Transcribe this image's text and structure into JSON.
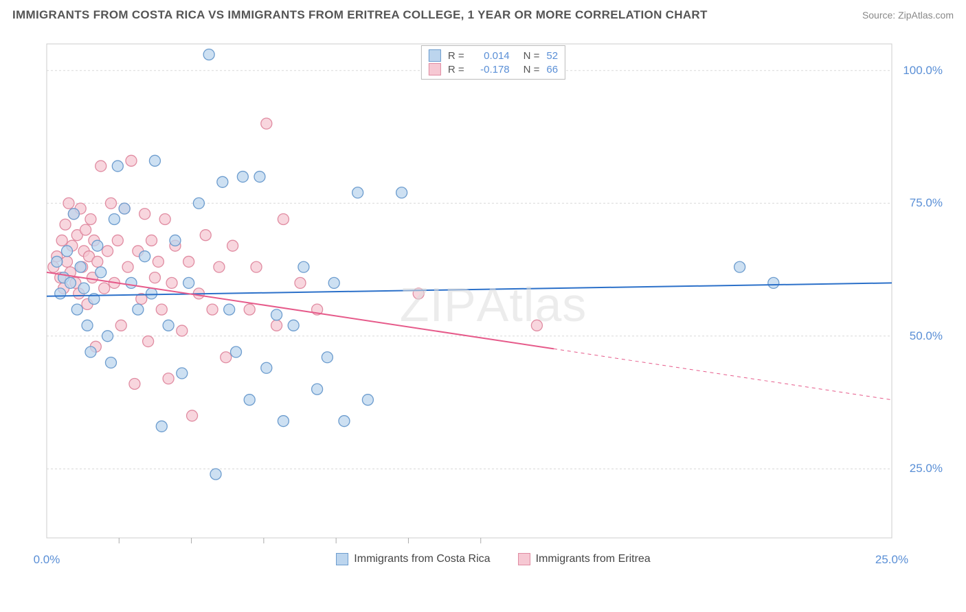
{
  "title": "IMMIGRANTS FROM COSTA RICA VS IMMIGRANTS FROM ERITREA COLLEGE, 1 YEAR OR MORE CORRELATION CHART",
  "source": "Source: ZipAtlas.com",
  "watermark": "ZIPAtlas",
  "ylabel": "College, 1 year or more",
  "chart": {
    "type": "scatter",
    "background_color": "#ffffff",
    "grid_color": "#d8d8d8",
    "plot_border_color": "#cccccc",
    "xlim": [
      0,
      25
    ],
    "ylim": [
      12,
      105
    ],
    "ytick_values": [
      25,
      50,
      75,
      100
    ],
    "ytick_labels": [
      "25.0%",
      "50.0%",
      "75.0%",
      "100.0%"
    ],
    "xtick_values": [
      0,
      25
    ],
    "xtick_labels": [
      "0.0%",
      "25.0%"
    ],
    "xtick_minor": [
      2.14,
      4.28,
      6.42,
      8.56,
      10.7,
      12.84
    ],
    "marker_radius": 8,
    "marker_stroke_width": 1.3,
    "line_width": 2,
    "series": [
      {
        "name": "Immigrants from Costa Rica",
        "fill": "#bcd5ee",
        "stroke": "#6c9cce",
        "line_color": "#2b70c9",
        "r_value": "0.014",
        "n_value": "52",
        "trend": {
          "x1": 0,
          "y1": 57.5,
          "x2": 25,
          "y2": 60,
          "solid_until_x": 25
        },
        "points": [
          [
            0.3,
            64
          ],
          [
            0.4,
            58
          ],
          [
            0.5,
            61
          ],
          [
            0.6,
            66
          ],
          [
            0.7,
            60
          ],
          [
            0.8,
            73
          ],
          [
            0.9,
            55
          ],
          [
            1.0,
            63
          ],
          [
            1.1,
            59
          ],
          [
            1.2,
            52
          ],
          [
            1.3,
            47
          ],
          [
            1.4,
            57
          ],
          [
            1.5,
            67
          ],
          [
            1.6,
            62
          ],
          [
            1.8,
            50
          ],
          [
            1.9,
            45
          ],
          [
            2.0,
            72
          ],
          [
            2.1,
            82
          ],
          [
            2.3,
            74
          ],
          [
            2.5,
            60
          ],
          [
            2.7,
            55
          ],
          [
            2.9,
            65
          ],
          [
            3.1,
            58
          ],
          [
            3.2,
            83
          ],
          [
            3.4,
            33
          ],
          [
            3.6,
            52
          ],
          [
            3.8,
            68
          ],
          [
            4.0,
            43
          ],
          [
            4.2,
            60
          ],
          [
            4.5,
            75
          ],
          [
            4.8,
            103
          ],
          [
            5.0,
            24
          ],
          [
            5.2,
            79
          ],
          [
            5.4,
            55
          ],
          [
            5.6,
            47
          ],
          [
            5.8,
            80
          ],
          [
            6.0,
            38
          ],
          [
            6.3,
            80
          ],
          [
            6.5,
            44
          ],
          [
            6.8,
            54
          ],
          [
            7.0,
            34
          ],
          [
            7.3,
            52
          ],
          [
            7.6,
            63
          ],
          [
            8.0,
            40
          ],
          [
            8.3,
            46
          ],
          [
            8.5,
            60
          ],
          [
            8.8,
            34
          ],
          [
            9.2,
            77
          ],
          [
            9.5,
            38
          ],
          [
            10.5,
            77
          ],
          [
            20.5,
            63
          ],
          [
            21.5,
            60
          ]
        ]
      },
      {
        "name": "Immigrants from Eritrea",
        "fill": "#f6c8d3",
        "stroke": "#e08ba1",
        "line_color": "#e65a8a",
        "r_value": "-0.178",
        "n_value": "66",
        "trend": {
          "x1": 0,
          "y1": 62,
          "x2": 25,
          "y2": 38,
          "solid_until_x": 15
        },
        "points": [
          [
            0.2,
            63
          ],
          [
            0.3,
            65
          ],
          [
            0.4,
            61
          ],
          [
            0.45,
            68
          ],
          [
            0.5,
            59
          ],
          [
            0.55,
            71
          ],
          [
            0.6,
            64
          ],
          [
            0.65,
            75
          ],
          [
            0.7,
            62
          ],
          [
            0.75,
            67
          ],
          [
            0.8,
            73
          ],
          [
            0.85,
            60
          ],
          [
            0.9,
            69
          ],
          [
            0.95,
            58
          ],
          [
            1.0,
            74
          ],
          [
            1.05,
            63
          ],
          [
            1.1,
            66
          ],
          [
            1.15,
            70
          ],
          [
            1.2,
            56
          ],
          [
            1.25,
            65
          ],
          [
            1.3,
            72
          ],
          [
            1.35,
            61
          ],
          [
            1.4,
            68
          ],
          [
            1.45,
            48
          ],
          [
            1.5,
            64
          ],
          [
            1.6,
            82
          ],
          [
            1.7,
            59
          ],
          [
            1.8,
            66
          ],
          [
            1.9,
            75
          ],
          [
            2.0,
            60
          ],
          [
            2.1,
            68
          ],
          [
            2.2,
            52
          ],
          [
            2.3,
            74
          ],
          [
            2.4,
            63
          ],
          [
            2.5,
            83
          ],
          [
            2.6,
            41
          ],
          [
            2.7,
            66
          ],
          [
            2.8,
            57
          ],
          [
            2.9,
            73
          ],
          [
            3.0,
            49
          ],
          [
            3.1,
            68
          ],
          [
            3.2,
            61
          ],
          [
            3.3,
            64
          ],
          [
            3.4,
            55
          ],
          [
            3.5,
            72
          ],
          [
            3.6,
            42
          ],
          [
            3.7,
            60
          ],
          [
            3.8,
            67
          ],
          [
            4.0,
            51
          ],
          [
            4.2,
            64
          ],
          [
            4.3,
            35
          ],
          [
            4.5,
            58
          ],
          [
            4.7,
            69
          ],
          [
            4.9,
            55
          ],
          [
            5.1,
            63
          ],
          [
            5.3,
            46
          ],
          [
            5.5,
            67
          ],
          [
            6.0,
            55
          ],
          [
            6.2,
            63
          ],
          [
            6.5,
            90
          ],
          [
            6.8,
            52
          ],
          [
            7.0,
            72
          ],
          [
            7.5,
            60
          ],
          [
            8.0,
            55
          ],
          [
            11.0,
            58
          ],
          [
            14.5,
            52
          ]
        ]
      }
    ],
    "legend_top": {
      "r_label": "R =",
      "n_label": "N =",
      "text_color": "#555555",
      "value_color": "#5a8fd6"
    },
    "axis_label_color": "#5a8fd6",
    "tick_color": "#aaaaaa"
  }
}
